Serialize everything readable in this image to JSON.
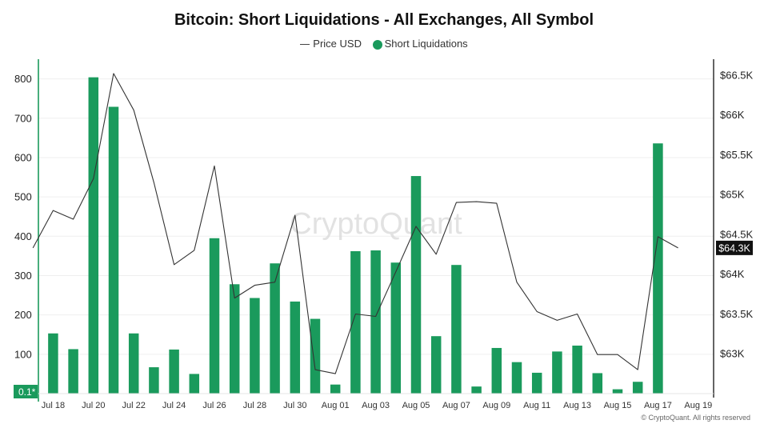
{
  "chart_data": {
    "type": "bar",
    "title": "Bitcoin: Short Liquidations - All Exchanges, All Symbol",
    "legend": [
      "Price USD",
      "Short Liquidations"
    ],
    "legend_position": "top-center",
    "x_tick_labels": [
      "Jul 18",
      "Jul 20",
      "Jul 22",
      "Jul 24",
      "Jul 26",
      "Jul 28",
      "Jul 30",
      "Aug 01",
      "Aug 03",
      "Aug 05",
      "Aug 07",
      "Aug 09",
      "Aug 11",
      "Aug 13",
      "Aug 15",
      "Aug 17",
      "Aug 19"
    ],
    "y_left_ticks": [
      800,
      700,
      600,
      500,
      400,
      300,
      200,
      100
    ],
    "y_left_bottom_label": "0.1*",
    "y_left_range": [
      0,
      850
    ],
    "y_right_ticks": [
      "$66.5K",
      "$66K",
      "$65.5K",
      "$65K",
      "$64.5K",
      "$64K",
      "$63.5K",
      "$63K"
    ],
    "y_right_tick_values": [
      66500,
      66000,
      65500,
      65000,
      64500,
      64000,
      63500,
      63000
    ],
    "y_right_range": [
      62500,
      66700
    ],
    "current_price_label": "$64.3K",
    "grid": true,
    "series": [
      {
        "name": "Short Liquidations",
        "color": "#1a9a5c",
        "axis": "left",
        "x": [
          "2024-07-18",
          "2024-07-19",
          "2024-07-20",
          "2024-07-21",
          "2024-07-22",
          "2024-07-23",
          "2024-07-24",
          "2024-07-25",
          "2024-07-26",
          "2024-07-27",
          "2024-07-28",
          "2024-07-29",
          "2024-07-30",
          "2024-07-31",
          "2024-08-01",
          "2024-08-02",
          "2024-08-03",
          "2024-08-04",
          "2024-08-05",
          "2024-08-06",
          "2024-08-07",
          "2024-08-08",
          "2024-08-09",
          "2024-08-10",
          "2024-08-11",
          "2024-08-12",
          "2024-08-13",
          "2024-08-14",
          "2024-08-15",
          "2024-08-16",
          "2024-08-17"
        ],
        "values": [
          153,
          113,
          804,
          729,
          153,
          67,
          112,
          50,
          395,
          278,
          243,
          331,
          234,
          190,
          23,
          362,
          364,
          333,
          553,
          146,
          327,
          18,
          116,
          80,
          53,
          107,
          122,
          52,
          11,
          30,
          636
        ]
      },
      {
        "name": "Price USD",
        "color": "#333333",
        "axis": "right",
        "x": [
          "2024-07-17",
          "2024-07-18",
          "2024-07-19",
          "2024-07-20",
          "2024-07-21",
          "2024-07-22",
          "2024-07-23",
          "2024-07-24",
          "2024-07-25",
          "2024-07-26",
          "2024-07-27",
          "2024-07-28",
          "2024-07-29",
          "2024-07-30",
          "2024-07-31",
          "2024-08-01",
          "2024-08-02",
          "2024-08-03",
          "2024-08-04",
          "2024-08-05",
          "2024-08-06",
          "2024-08-07",
          "2024-08-08",
          "2024-08-09",
          "2024-08-10",
          "2024-08-11",
          "2024-08-12",
          "2024-08-13",
          "2024-08-14",
          "2024-08-15",
          "2024-08-16",
          "2024-08-17",
          "2024-08-18"
        ],
        "values": [
          64330,
          64800,
          64690,
          65200,
          66520,
          66060,
          65150,
          64120,
          64300,
          65360,
          63700,
          63860,
          63900,
          64740,
          62800,
          62750,
          63500,
          63470,
          64030,
          64600,
          64250,
          64900,
          64910,
          64890,
          63900,
          63530,
          63420,
          63500,
          62990,
          62990,
          62800,
          64470,
          64330
        ]
      }
    ]
  },
  "watermark": "CryptoQuant",
  "credit": "© CryptoQuant. All rights reserved"
}
